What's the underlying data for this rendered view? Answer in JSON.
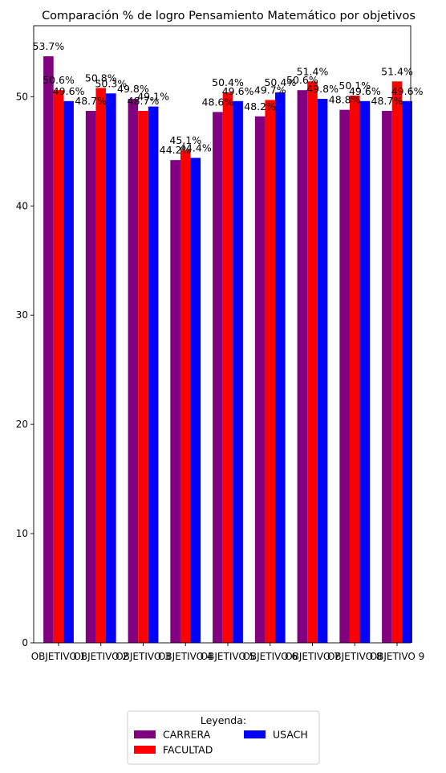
{
  "chart_data": {
    "type": "bar",
    "title": "Comparación % de logro Pensamiento Matemático por objetivos",
    "xlabel": "",
    "ylabel": "",
    "categories": [
      "OBJETIVO 1",
      "OBJETIVO 2",
      "OBJETIVO 3",
      "OBJETIVO 4",
      "OBJETIVO 5",
      "OBJETIVO 6",
      "OBJETIVO 7",
      "OBJETIVO 8",
      "OBJETIVO 9"
    ],
    "series": [
      {
        "name": "CARRERA",
        "color": "#800080",
        "values": [
          53.7,
          48.7,
          49.8,
          44.2,
          48.6,
          48.2,
          50.6,
          48.8,
          48.7
        ],
        "labels": [
          "53.7%",
          "48.7%",
          "49.8%",
          "44.2%",
          "48.6%",
          "48.2%",
          "50.6%",
          "48.8%",
          "48.7%"
        ]
      },
      {
        "name": "FACULTAD",
        "color": "#ff0000",
        "values": [
          50.6,
          50.8,
          48.7,
          45.1,
          50.4,
          49.7,
          51.4,
          50.1,
          51.4
        ],
        "labels": [
          "50.6%",
          "50.8%",
          "48.7%",
          "45.1%",
          "50.4%",
          "49.7%",
          "51.4%",
          "50.1%",
          "51.4%"
        ]
      },
      {
        "name": "USACH",
        "color": "#0000ff",
        "values": [
          49.6,
          50.3,
          49.1,
          44.4,
          49.6,
          50.4,
          49.8,
          49.6,
          49.6
        ],
        "labels": [
          "49.6%",
          "50.3%",
          "49.1%",
          "44.4%",
          "49.6%",
          "50.4%",
          "49.8%",
          "49.6%",
          "49.6%"
        ]
      }
    ],
    "yticks": [
      0,
      10,
      20,
      30,
      40,
      50
    ],
    "ylim": [
      0,
      56.5
    ],
    "grid": false,
    "legend": {
      "title": "Leyenda:",
      "placement": "bottom-center",
      "columns": 2
    }
  }
}
